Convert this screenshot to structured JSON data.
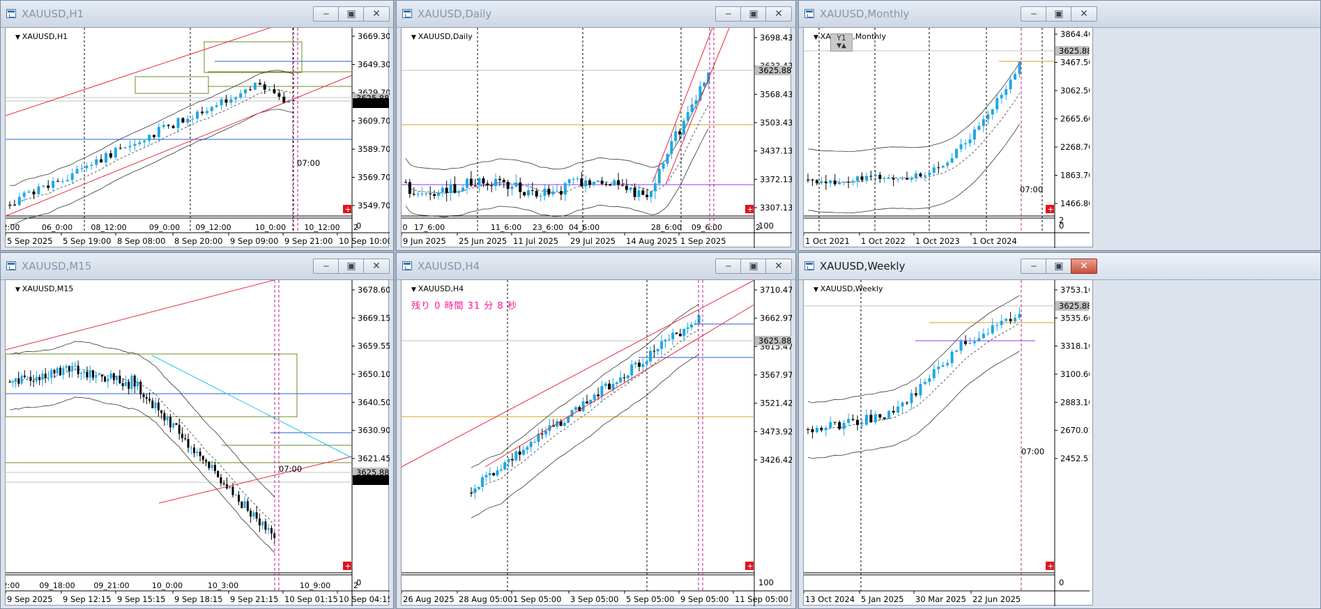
{
  "windows": [
    {
      "id": "h1",
      "title": "XAUUSD,H1",
      "symbol_label": "XAUUSD,H1",
      "y_ticks": [
        "3669.30",
        "3649.30",
        "3629.70",
        "3609.70",
        "3589.70",
        "3569.70",
        "3549.70"
      ],
      "price_tags": [
        "3625.88",
        "3623.21"
      ],
      "time_labels": [
        "2:00",
        "06_0:00",
        "08_12:00",
        "09_0:00",
        "09_12:00",
        "10_0:00",
        "10_12:00",
        "2"
      ],
      "x_ticks": [
        "5 Sep 2025",
        "5 Sep 19:00",
        "8 Sep 08:00",
        "8 Sep 20:00",
        "9 Sep 09:00",
        "9 Sep 21:00",
        "10 Sep 10:00"
      ],
      "overlay_time": "07:00",
      "sub_value": "0"
    },
    {
      "id": "daily",
      "title": "XAUUSD,Daily",
      "symbol_label": "XAUUSD,Daily",
      "y_ticks": [
        "3698.43",
        "3633.43",
        "3568.43",
        "3503.43",
        "3437.13",
        "3372.13",
        "3307.13"
      ],
      "price_tags": [
        "3625.88"
      ],
      "time_labels": [
        "0",
        "17_6:00",
        "11_6:00",
        "23_6:00",
        "04_6:00",
        "28_6:00",
        "09_6:00",
        "2"
      ],
      "x_ticks": [
        "9 Jun 2025",
        "25 Jun 2025",
        "11 Jul 2025",
        "29 Jul 2025",
        "14 Aug 2025",
        "1 Sep 2025"
      ],
      "sub_value": "100"
    },
    {
      "id": "monthly",
      "title": "XAUUSD,Monthly",
      "symbol_label": "XAUUSD,Monthly",
      "y_ticks": [
        "3864.40",
        "3467.50",
        "3062.50",
        "2665.60",
        "2268.70",
        "1863.70",
        "1466.80"
      ],
      "price_tags": [
        "3625.88"
      ],
      "x_ticks": [
        "1 Oct 2021",
        "1 Oct 2022",
        "1 Oct 2023",
        "1 Oct 2024"
      ],
      "overlay_time": "07:00",
      "badge": "Y1",
      "badge_arrows": "▼▲",
      "sub_top": "2",
      "sub_value": "0"
    },
    {
      "id": "m15",
      "title": "XAUUSD,M15",
      "symbol_label": "XAUUSD,M15",
      "y_ticks": [
        "3678.60",
        "3669.15",
        "3659.55",
        "3650.10",
        "3640.50",
        "3630.90",
        "3621.45"
      ],
      "price_tags": [
        "3625.88",
        "3623.21"
      ],
      "time_labels": [
        "2:00",
        "09_18:00",
        "09_21:00",
        "10_0:00",
        "10_3:00",
        "10_9:00",
        "2"
      ],
      "x_ticks": [
        "9 Sep 2025",
        "9 Sep 12:15",
        "9 Sep 15:15",
        "9 Sep 18:15",
        "9 Sep 21:15",
        "10 Sep 01:15",
        "10 Sep 04:15"
      ],
      "overlay_time": "07:00",
      "sub_value": "0"
    },
    {
      "id": "h4",
      "title": "XAUUSD,H4",
      "symbol_label": "XAUUSD,H4",
      "countdown": "残り 0 時間 31 分 8 秒",
      "y_ticks": [
        "3710.47",
        "3662.97",
        "3615.47",
        "3567.97",
        "3521.42",
        "3473.92",
        "3426.42"
      ],
      "price_tags": [
        "3625.88"
      ],
      "x_ticks": [
        "26 Aug 2025",
        "28 Aug 05:00",
        "1 Sep 05:00",
        "3 Sep 05:00",
        "5 Sep 05:00",
        "9 Sep 05:00",
        "11 Sep 05:00"
      ],
      "sub_value": "100"
    },
    {
      "id": "weekly",
      "title": "XAUUSD,Weekly",
      "symbol_label": "XAUUSD,Weekly",
      "y_ticks": [
        "3753.16",
        "3535.66",
        "3318.16",
        "3100.66",
        "2883.16",
        "2670.01",
        "2452.51"
      ],
      "price_tags": [
        "3625.88"
      ],
      "x_ticks": [
        "13 Oct 2024",
        "5 Jan 2025",
        "30 Mar 2025",
        "22 Jun 2025"
      ],
      "overlay_time": "07:00",
      "sub_value": "0"
    }
  ],
  "colors": {
    "bull": "#1ea7e6",
    "bear": "#000000",
    "channel": "#e8283c",
    "band": "#333333",
    "box": "#6b8e23",
    "hline_blue": "#1f5fd6",
    "hline_gold": "#d4a017",
    "hline_purple": "#9b30ff",
    "now_line": "#c71585",
    "price_tag_bg": "#c0c0c0",
    "price_tag_dark": "#000000"
  }
}
